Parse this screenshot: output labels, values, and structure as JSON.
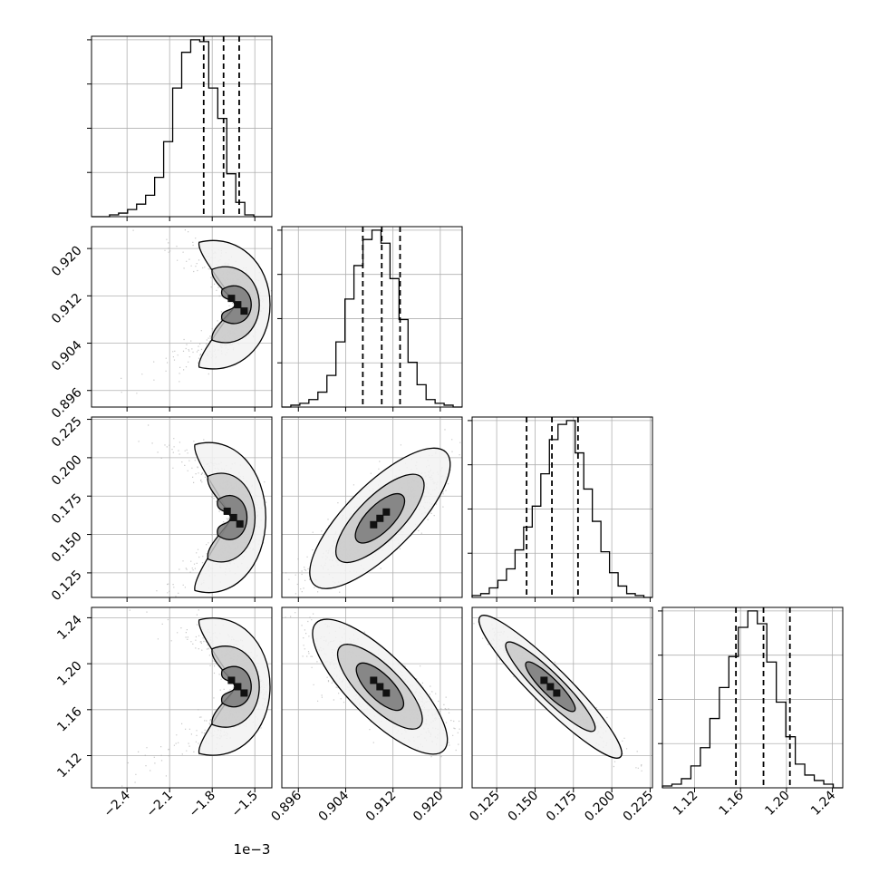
{
  "chart_data": {
    "type": "corner",
    "n_params": 4,
    "axis_offset_label": "1e−3",
    "params": [
      {
        "range": [
          -2.65,
          -1.38
        ],
        "ticks": [
          -2.4,
          -2.1,
          -1.8,
          -1.5
        ],
        "tick_labels": [
          "−2.4",
          "−2.1",
          "−1.8",
          "−1.5"
        ]
      },
      {
        "range": [
          0.8932,
          0.9237
        ],
        "ticks": [
          0.896,
          0.904,
          0.912,
          0.92
        ],
        "tick_labels": [
          "0.896",
          "0.904",
          "0.912",
          "0.920"
        ]
      },
      {
        "range": [
          0.109,
          0.2265
        ],
        "ticks": [
          0.125,
          0.15,
          0.175,
          0.2,
          0.225
        ],
        "tick_labels": [
          "0.125",
          "0.150",
          "0.175",
          "0.200",
          "0.225"
        ]
      },
      {
        "range": [
          1.092,
          1.249
        ],
        "ticks": [
          1.12,
          1.16,
          1.2,
          1.24
        ],
        "tick_labels": [
          "1.12",
          "1.16",
          "1.20",
          "1.24"
        ]
      }
    ],
    "histograms": [
      {
        "counts": [
          0,
          0,
          1,
          2,
          4,
          7,
          12,
          22,
          42,
          72,
          92,
          99,
          98,
          72,
          55,
          24,
          8,
          1,
          0,
          0
        ],
        "quantiles": [
          -1.86,
          -1.72,
          -1.61
        ]
      },
      {
        "counts": [
          0,
          1,
          2,
          4,
          8,
          17,
          35,
          58,
          76,
          90,
          95,
          88,
          69,
          47,
          24,
          12,
          4,
          2,
          1,
          0
        ],
        "quantiles": [
          0.9069,
          0.9101,
          0.9132
        ]
      },
      {
        "counts": [
          1,
          2,
          5,
          9,
          15,
          25,
          37,
          48,
          65,
          83,
          91,
          93,
          76,
          57,
          40,
          24,
          13,
          6,
          2,
          1,
          0
        ],
        "quantiles": [
          0.1445,
          0.161,
          0.178
        ]
      },
      {
        "counts": [
          1,
          2,
          5,
          12,
          22,
          38,
          55,
          72,
          88,
          97,
          90,
          69,
          47,
          28,
          13,
          7,
          4,
          2,
          0
        ],
        "quantiles": [
          1.156,
          1.18,
          1.203
        ]
      }
    ],
    "pairs": [
      {
        "i": 1,
        "j": 0,
        "center": [
          -1.62,
          0.9105
        ],
        "spread": [
          0.14,
          0.004
        ],
        "shape": "c-curve"
      },
      {
        "i": 2,
        "j": 0,
        "center": [
          -1.65,
          0.161
        ],
        "spread": [
          0.14,
          0.018
        ],
        "shape": "c-curve"
      },
      {
        "i": 2,
        "j": 1,
        "center": [
          0.9098,
          0.1605
        ],
        "spread": [
          0.0055,
          0.018
        ],
        "shape": "positive-correlation"
      },
      {
        "i": 3,
        "j": 0,
        "center": [
          -1.62,
          1.18
        ],
        "spread": [
          0.14,
          0.022
        ],
        "shape": "c-curve"
      },
      {
        "i": 3,
        "j": 1,
        "center": [
          0.9098,
          1.18
        ],
        "spread": [
          0.0055,
          0.022
        ],
        "shape": "negative-correlation"
      },
      {
        "i": 3,
        "j": 2,
        "center": [
          0.16,
          1.18
        ],
        "spread": [
          0.018,
          0.022
        ],
        "shape": "strong-negative-correlation"
      }
    ],
    "grid": true,
    "colors": {
      "points": "#9a9a9a",
      "line": "#000000",
      "quantile_line": "#000000",
      "grid": "#b0b0b0"
    }
  }
}
